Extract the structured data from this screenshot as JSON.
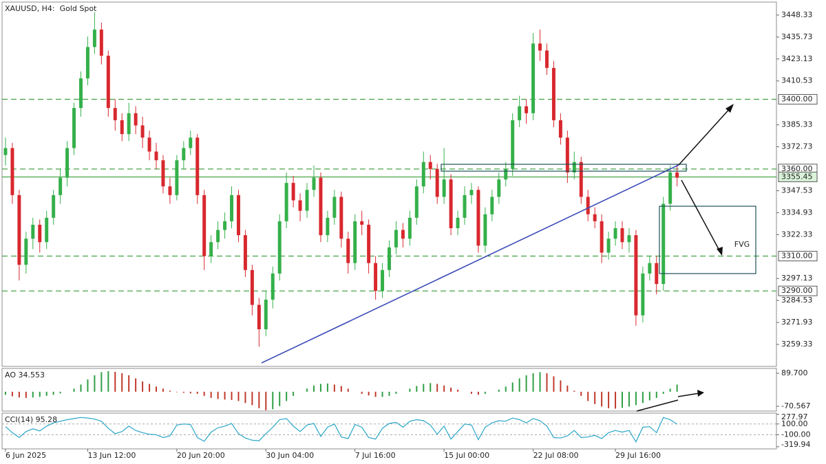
{
  "chart_data": [
    {
      "type": "candlestick",
      "title": "XAUUSD, H4:  Gold Spot",
      "xlim": [
        -0.5,
        112.5
      ],
      "xticks": [
        {
          "value": 0,
          "label": "6 Jun 2025"
        },
        {
          "value": 12,
          "label": "13 Jun 12:00"
        },
        {
          "value": 25,
          "label": "20 Jun 20:00"
        },
        {
          "value": 38,
          "label": "30 Jun 04:00"
        },
        {
          "value": 51,
          "label": "7 Jul 16:00"
        },
        {
          "value": 64,
          "label": "15 Jul 00:00"
        },
        {
          "value": 77,
          "label": "22 Jul 08:00"
        },
        {
          "value": 89,
          "label": "29 Jul 16:00"
        }
      ],
      "ylim": [
        3246.7,
        3455.8
      ],
      "yticks": [
        {
          "value": 3448.33,
          "label": "3448.33"
        },
        {
          "value": 3435.73,
          "label": "3435.73"
        },
        {
          "value": 3423.13,
          "label": "3423.13"
        },
        {
          "value": 3410.53,
          "label": "3410.53"
        },
        {
          "value": 3385.33,
          "label": "3385.33"
        },
        {
          "value": 3372.73,
          "label": "3372.73"
        },
        {
          "value": 3347.53,
          "label": "3347.53"
        },
        {
          "value": 3334.93,
          "label": "3334.93"
        },
        {
          "value": 3322.33,
          "label": "3322.33"
        },
        {
          "value": 3297.13,
          "label": "3297.13"
        },
        {
          "value": 3284.53,
          "label": "3284.53"
        },
        {
          "value": 3271.93,
          "label": "3271.93"
        },
        {
          "value": 3259.33,
          "label": "3259.33"
        }
      ],
      "levels": [
        {
          "value": 3400,
          "label": "3400.00",
          "style": "dashed"
        },
        {
          "value": 3360,
          "label": "3360.00",
          "style": "dashed"
        },
        {
          "value": 3355.45,
          "label": "3355.45",
          "style": "solid"
        },
        {
          "value": 3310,
          "label": "3310.00",
          "style": "dashed"
        },
        {
          "value": 3290,
          "label": "3290.00",
          "style": "dashed"
        }
      ],
      "level_color": "#1f8f1f",
      "up_color": "#35b04a",
      "down_color": "#d8282e",
      "annotation": "FVG",
      "open": [
        3368,
        3372,
        3345,
        3305,
        3320,
        3328,
        3318,
        3332,
        3345,
        3355,
        3372,
        3395,
        3412,
        3430,
        3440,
        3425,
        3395,
        3388,
        3380,
        3392,
        3385,
        3378,
        3370,
        3365,
        3350,
        3345,
        3365,
        3372,
        3378,
        3345,
        3310,
        3318,
        3325,
        3330,
        3345,
        3322,
        3302,
        3282,
        3268,
        3285,
        3300,
        3330,
        3352,
        3342,
        3336,
        3348,
        3355,
        3322,
        3332,
        3344,
        3320,
        3306,
        3330,
        3328,
        3306,
        3290,
        3302,
        3315,
        3325,
        3320,
        3332,
        3350,
        3364,
        3360,
        3344,
        3354,
        3326,
        3332,
        3345,
        3348,
        3316,
        3334,
        3344,
        3354,
        3360,
        3388,
        3396,
        3392,
        3432,
        3428,
        3418,
        3388,
        3378,
        3358,
        3364,
        3344,
        3334,
        3330,
        3312,
        3320,
        3326,
        3318,
        3322,
        3276,
        3300,
        3306,
        3294,
        3340,
        3358
      ],
      "high": [
        3378,
        3375,
        3348,
        3324,
        3332,
        3331,
        3336,
        3348,
        3360,
        3376,
        3398,
        3416,
        3436,
        3450,
        3444,
        3428,
        3400,
        3392,
        3398,
        3396,
        3390,
        3382,
        3375,
        3368,
        3355,
        3368,
        3376,
        3382,
        3380,
        3348,
        3322,
        3330,
        3335,
        3350,
        3348,
        3325,
        3305,
        3286,
        3290,
        3304,
        3334,
        3358,
        3356,
        3346,
        3352,
        3362,
        3358,
        3336,
        3348,
        3347,
        3324,
        3334,
        3336,
        3331,
        3310,
        3306,
        3319,
        3330,
        3329,
        3336,
        3354,
        3370,
        3368,
        3363,
        3372,
        3357,
        3336,
        3350,
        3352,
        3350,
        3338,
        3348,
        3358,
        3364,
        3392,
        3402,
        3400,
        3438,
        3440,
        3432,
        3422,
        3392,
        3382,
        3370,
        3367,
        3348,
        3338,
        3334,
        3324,
        3330,
        3330,
        3326,
        3325,
        3304,
        3310,
        3310,
        3344,
        3362,
        3363
      ],
      "low": [
        3362,
        3340,
        3296,
        3300,
        3314,
        3312,
        3314,
        3328,
        3340,
        3350,
        3368,
        3390,
        3408,
        3426,
        3420,
        3390,
        3382,
        3376,
        3376,
        3380,
        3372,
        3365,
        3360,
        3346,
        3340,
        3342,
        3360,
        3368,
        3340,
        3302,
        3306,
        3314,
        3320,
        3326,
        3318,
        3298,
        3276,
        3258,
        3264,
        3280,
        3296,
        3326,
        3338,
        3330,
        3332,
        3344,
        3318,
        3318,
        3328,
        3315,
        3300,
        3302,
        3322,
        3300,
        3285,
        3286,
        3298,
        3311,
        3315,
        3316,
        3328,
        3346,
        3354,
        3340,
        3340,
        3322,
        3322,
        3328,
        3340,
        3312,
        3312,
        3330,
        3340,
        3350,
        3356,
        3384,
        3386,
        3388,
        3422,
        3414,
        3384,
        3374,
        3352,
        3354,
        3340,
        3330,
        3326,
        3306,
        3308,
        3316,
        3314,
        3312,
        3270,
        3272,
        3296,
        3288,
        3290,
        3336,
        3350
      ],
      "close": [
        3372,
        3345,
        3305,
        3320,
        3328,
        3318,
        3332,
        3345,
        3355,
        3372,
        3395,
        3412,
        3430,
        3440,
        3425,
        3395,
        3388,
        3380,
        3392,
        3385,
        3378,
        3370,
        3365,
        3350,
        3345,
        3365,
        3372,
        3378,
        3345,
        3310,
        3318,
        3325,
        3330,
        3345,
        3322,
        3302,
        3282,
        3268,
        3285,
        3300,
        3330,
        3352,
        3342,
        3336,
        3348,
        3355,
        3322,
        3332,
        3344,
        3320,
        3306,
        3330,
        3328,
        3306,
        3290,
        3302,
        3315,
        3325,
        3320,
        3332,
        3350,
        3364,
        3360,
        3344,
        3354,
        3326,
        3332,
        3345,
        3348,
        3316,
        3334,
        3344,
        3354,
        3360,
        3388,
        3396,
        3392,
        3432,
        3428,
        3418,
        3388,
        3378,
        3358,
        3364,
        3344,
        3334,
        3330,
        3312,
        3320,
        3326,
        3318,
        3322,
        3276,
        3300,
        3306,
        3294,
        3340,
        3358,
        3355
      ]
    },
    {
      "type": "bar",
      "title": "AO 34.553",
      "ylim": [
        -93.9,
        113.1
      ],
      "yticks": [
        {
          "value": 89.7,
          "label": "89.700"
        },
        {
          "value": -70.567,
          "label": "-70.567"
        }
      ],
      "up_color": "#2e9e44",
      "down_color": "#c0392b",
      "values": [
        -15,
        -22,
        -28,
        -30,
        -28,
        -25,
        -20,
        -15,
        -8,
        0,
        15,
        35,
        60,
        80,
        95,
        100,
        97,
        90,
        80,
        65,
        50,
        38,
        25,
        15,
        5,
        -2,
        -5,
        -8,
        -10,
        -20,
        -30,
        -35,
        -38,
        -40,
        -45,
        -55,
        -65,
        -80,
        -90,
        -85,
        -70,
        -45,
        -20,
        0,
        15,
        30,
        38,
        40,
        35,
        28,
        15,
        0,
        -10,
        -18,
        -25,
        -25,
        -20,
        -10,
        0,
        15,
        28,
        38,
        42,
        38,
        30,
        20,
        10,
        0,
        -10,
        -15,
        -10,
        0,
        10,
        25,
        45,
        65,
        80,
        90,
        95,
        90,
        75,
        55,
        30,
        5,
        -20,
        -45,
        -60,
        -72,
        -80,
        -82,
        -78,
        -72,
        -65,
        -55,
        -42,
        -30,
        -10,
        15,
        34.553
      ]
    },
    {
      "type": "line",
      "title": "CCI(14) 95.28",
      "ylim": [
        -360,
        300
      ],
      "yticks": [
        {
          "value": 277.97,
          "label": "277.97"
        },
        {
          "value": 100,
          "label": "100.00"
        },
        {
          "value": -100,
          "label": "-100.00"
        },
        {
          "value": -319.94,
          "label": "-319.94"
        }
      ],
      "levels": [
        100,
        -100
      ],
      "color": "#2aa6c8",
      "values": [
        50,
        -60,
        -150,
        -40,
        10,
        -30,
        60,
        120,
        150,
        180,
        200,
        220,
        210,
        190,
        150,
        20,
        -80,
        -40,
        60,
        -20,
        -60,
        -90,
        -100,
        -150,
        -120,
        80,
        100,
        90,
        -150,
        -220,
        -50,
        30,
        60,
        110,
        -80,
        -160,
        -200,
        -210,
        -80,
        40,
        180,
        200,
        60,
        -40,
        80,
        110,
        -130,
        40,
        100,
        -140,
        -170,
        90,
        40,
        -150,
        -180,
        20,
        110,
        130,
        40,
        150,
        180,
        160,
        80,
        -90,
        60,
        -180,
        -40,
        100,
        80,
        -190,
        40,
        120,
        160,
        150,
        210,
        180,
        120,
        200,
        160,
        60,
        -150,
        -160,
        -120,
        -20,
        -150,
        -140,
        -110,
        -170,
        -60,
        -20,
        -50,
        -20,
        -230,
        40,
        50,
        -60,
        220,
        180,
        95.28
      ]
    }
  ]
}
